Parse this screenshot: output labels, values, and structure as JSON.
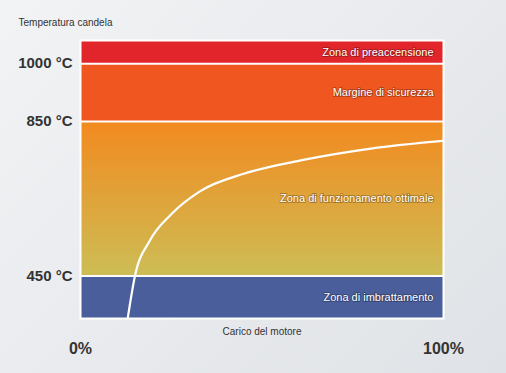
{
  "chart_data": {
    "type": "line",
    "x_label": "Carico del motore",
    "y_label": "Temperatura candela",
    "x": [
      13,
      15,
      19,
      25,
      33,
      45,
      61,
      80,
      100
    ],
    "values": [
      340,
      450,
      540,
      610,
      670,
      715,
      750,
      780,
      800
    ],
    "color": "#ffffff",
    "xlim": [
      0,
      100
    ],
    "xticks": [
      {
        "value": 0,
        "label": "0%"
      },
      {
        "value": 100,
        "label": "100%"
      }
    ],
    "ylim": [
      340,
      1060
    ],
    "yticks": [
      {
        "value": 450,
        "label": "450 °C"
      },
      {
        "value": 850,
        "label": "850 °C"
      },
      {
        "value": 1000,
        "label": "1000 °C"
      }
    ],
    "grid": true,
    "zones": [
      {
        "label": "Zona di preaccensione",
        "from": 1000,
        "to": 1060,
        "color": "#e1252b"
      },
      {
        "label": "Margine di sicurezza",
        "from": 850,
        "to": 1000,
        "color": "#f0561f"
      },
      {
        "label": "Zona di funzionamento ottimale",
        "from": 450,
        "to": 850,
        "colors": [
          "#f28a1f",
          "#cdbd55"
        ]
      },
      {
        "label": "Zona di imbrattamento",
        "from": 340,
        "to": 450,
        "color": "#4a5e9c"
      }
    ]
  }
}
